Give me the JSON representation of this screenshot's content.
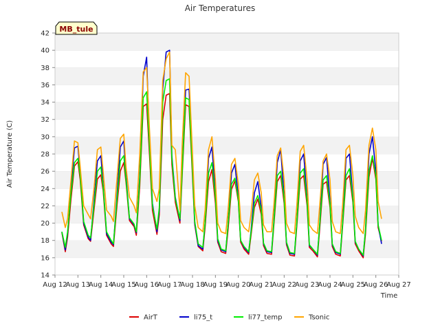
{
  "chart_data": {
    "type": "line",
    "title": "Air Temperatures",
    "xlabel": "Time",
    "ylabel": "Air Temperature (C)",
    "badge": "MB_tule",
    "ylim": [
      14,
      42
    ],
    "yticks": [
      14,
      16,
      18,
      20,
      22,
      24,
      26,
      28,
      30,
      32,
      34,
      36,
      38,
      40,
      42
    ],
    "xlim": [
      12,
      27
    ],
    "xticks": [
      12,
      13,
      14,
      15,
      16,
      17,
      18,
      19,
      20,
      21,
      22,
      23,
      24,
      25,
      26,
      27
    ],
    "xtick_labels": [
      "Aug 12",
      "Aug 13",
      "Aug 14",
      "Aug 15",
      "Aug 16",
      "Aug 17",
      "Aug 18",
      "Aug 19",
      "Aug 20",
      "Aug 21",
      "Aug 22",
      "Aug 23",
      "Aug 24",
      "Aug 25",
      "Aug 26",
      "Aug 27"
    ],
    "grid": "horizontal bands",
    "legend_position": "bottom-center",
    "series": [
      {
        "name": "AirT",
        "color": "#dd0000",
        "x": [
          12.3,
          12.45,
          12.55,
          12.7,
          12.85,
          13.0,
          13.1,
          13.25,
          13.45,
          13.55,
          13.7,
          13.85,
          14.0,
          14.1,
          14.25,
          14.45,
          14.55,
          14.7,
          14.85,
          15.0,
          15.1,
          15.25,
          15.45,
          15.55,
          15.7,
          15.85,
          16.0,
          16.1,
          16.25,
          16.45,
          16.55,
          16.7,
          16.85,
          17.0,
          17.1,
          17.25,
          17.45,
          17.55,
          17.7,
          17.85,
          18.0,
          18.1,
          18.25,
          18.45,
          18.55,
          18.7,
          18.85,
          19.0,
          19.1,
          19.25,
          19.45,
          19.55,
          19.7,
          19.85,
          20.0,
          20.1,
          20.25,
          20.45,
          20.55,
          20.7,
          20.85,
          21.0,
          21.1,
          21.25,
          21.45,
          21.55,
          21.7,
          21.85,
          22.0,
          22.1,
          22.25,
          22.45,
          22.55,
          22.7,
          22.85,
          23.0,
          23.1,
          23.25,
          23.45,
          23.55,
          23.7,
          23.85,
          24.0,
          24.1,
          24.25,
          24.45,
          24.55,
          24.7,
          24.85,
          25.0,
          25.1,
          25.25,
          25.45,
          25.55,
          25.7,
          25.85,
          26.0,
          26.1,
          26.25
        ],
        "y": [
          18.9,
          16.7,
          18.4,
          22.8,
          26.6,
          27.1,
          25.0,
          19.8,
          18.2,
          17.9,
          21.5,
          25.1,
          25.6,
          23.8,
          18.6,
          17.6,
          17.3,
          21.9,
          26.0,
          27.0,
          24.7,
          20.3,
          19.6,
          18.6,
          24.3,
          33.5,
          33.8,
          29.0,
          21.5,
          18.7,
          21.0,
          32.0,
          34.8,
          35.0,
          26.8,
          22.4,
          20.0,
          25.5,
          33.7,
          33.5,
          25.4,
          19.8,
          17.3,
          16.8,
          19.5,
          24.8,
          26.2,
          22.3,
          17.8,
          16.7,
          16.5,
          19.2,
          23.9,
          24.9,
          22.5,
          17.8,
          17.0,
          16.4,
          18.5,
          21.8,
          22.8,
          21.0,
          17.4,
          16.5,
          16.4,
          19.7,
          24.8,
          25.5,
          22.3,
          17.5,
          16.3,
          16.2,
          19.6,
          25.1,
          25.5,
          22.0,
          17.2,
          16.8,
          16.1,
          19.3,
          24.5,
          24.8,
          21.8,
          17.3,
          16.4,
          16.2,
          19.6,
          25.0,
          25.5,
          22.4,
          17.6,
          16.8,
          16.0,
          18.8,
          25.3,
          27.5,
          25.1,
          19.5,
          17.9
        ]
      },
      {
        "name": "li75_t",
        "color": "#0000cc",
        "x": [
          12.3,
          12.45,
          12.55,
          12.7,
          12.85,
          13.0,
          13.1,
          13.25,
          13.45,
          13.55,
          13.7,
          13.85,
          14.0,
          14.1,
          14.25,
          14.45,
          14.55,
          14.7,
          14.85,
          15.0,
          15.1,
          15.25,
          15.45,
          15.55,
          15.7,
          15.85,
          16.0,
          16.1,
          16.25,
          16.45,
          16.55,
          16.7,
          16.85,
          17.0,
          17.1,
          17.25,
          17.45,
          17.55,
          17.7,
          17.85,
          18.0,
          18.1,
          18.25,
          18.45,
          18.55,
          18.7,
          18.85,
          19.0,
          19.1,
          19.25,
          19.45,
          19.55,
          19.7,
          19.85,
          20.0,
          20.1,
          20.25,
          20.45,
          20.55,
          20.7,
          20.85,
          21.0,
          21.1,
          21.25,
          21.45,
          21.55,
          21.7,
          21.85,
          22.0,
          22.1,
          22.25,
          22.45,
          22.55,
          22.7,
          22.85,
          23.0,
          23.1,
          23.25,
          23.45,
          23.55,
          23.7,
          23.85,
          24.0,
          24.1,
          24.25,
          24.45,
          24.55,
          24.7,
          24.85,
          25.0,
          25.1,
          25.25,
          25.45,
          25.55,
          25.7,
          25.85,
          26.0,
          26.1,
          26.25
        ],
        "y": [
          19.0,
          16.9,
          18.8,
          24.0,
          28.7,
          28.9,
          25.8,
          20.0,
          18.4,
          18.0,
          22.5,
          27.2,
          27.8,
          24.5,
          18.8,
          17.8,
          17.5,
          23.0,
          28.8,
          29.5,
          25.5,
          20.5,
          19.8,
          18.9,
          25.5,
          37.0,
          39.2,
          31.0,
          22.3,
          19.0,
          21.5,
          35.5,
          39.8,
          40.0,
          27.8,
          23.0,
          20.3,
          26.5,
          35.4,
          35.5,
          26.2,
          20.0,
          17.4,
          17.0,
          20.0,
          27.5,
          28.8,
          23.5,
          18.0,
          16.9,
          16.7,
          19.8,
          25.8,
          26.8,
          23.0,
          18.0,
          17.2,
          16.6,
          19.0,
          23.5,
          24.8,
          21.8,
          17.6,
          16.7,
          16.6,
          20.2,
          27.0,
          28.5,
          23.0,
          17.7,
          16.5,
          16.4,
          20.0,
          27.2,
          28.0,
          22.8,
          17.4,
          17.0,
          16.3,
          19.8,
          26.8,
          27.6,
          22.5,
          17.5,
          16.6,
          16.4,
          20.0,
          27.5,
          28.0,
          23.0,
          17.8,
          17.0,
          16.2,
          19.3,
          28.0,
          30.0,
          26.0,
          19.8,
          17.6
        ]
      },
      {
        "name": "li77_temp",
        "color": "#00ee00",
        "x": [
          12.3,
          12.45,
          12.55,
          12.7,
          12.85,
          13.0,
          13.1,
          13.25,
          13.45,
          13.55,
          13.7,
          13.85,
          14.0,
          14.1,
          14.25,
          14.45,
          14.55,
          14.7,
          14.85,
          15.0,
          15.1,
          15.25,
          15.45,
          15.55,
          15.7,
          15.85,
          16.0,
          16.1,
          16.25,
          16.45,
          16.55,
          16.7,
          16.85,
          17.0,
          17.1,
          17.25,
          17.45,
          17.55,
          17.7,
          17.85,
          18.0,
          18.1,
          18.25,
          18.45,
          18.55,
          18.7,
          18.85,
          19.0,
          19.1,
          19.25,
          19.45,
          19.55,
          19.7,
          19.85,
          20.0,
          20.1,
          20.25,
          20.45,
          20.55,
          20.7,
          20.85,
          21.0,
          21.1,
          21.25,
          21.45,
          21.55,
          21.7,
          21.85,
          22.0,
          22.1,
          22.25,
          22.45,
          22.55,
          22.7,
          22.85,
          23.0,
          23.1,
          23.25,
          23.45,
          23.55,
          23.7,
          23.85,
          24.0,
          24.1,
          24.25,
          24.45,
          24.55,
          24.7,
          24.85,
          25.0,
          25.1,
          25.25,
          25.45,
          25.55,
          25.7,
          25.85,
          26.0,
          26.1,
          26.25
        ],
        "y": [
          19.0,
          17.2,
          19.0,
          23.5,
          27.0,
          27.5,
          25.5,
          20.2,
          18.6,
          18.3,
          22.0,
          26.0,
          26.5,
          24.2,
          19.0,
          18.0,
          17.6,
          22.5,
          27.2,
          27.8,
          25.0,
          20.6,
          19.9,
          19.0,
          25.0,
          34.5,
          35.2,
          30.0,
          22.0,
          19.3,
          21.8,
          34.0,
          36.5,
          36.7,
          27.5,
          22.8,
          20.5,
          26.0,
          34.5,
          34.3,
          26.0,
          20.2,
          17.6,
          17.2,
          20.0,
          25.8,
          27.0,
          23.0,
          18.2,
          17.0,
          16.8,
          19.8,
          24.5,
          25.2,
          22.8,
          18.0,
          17.3,
          16.7,
          18.8,
          22.3,
          23.2,
          21.5,
          17.7,
          16.8,
          16.7,
          20.0,
          25.5,
          26.0,
          22.8,
          17.8,
          16.6,
          16.5,
          20.0,
          25.8,
          26.3,
          22.5,
          17.5,
          17.0,
          16.4,
          19.8,
          25.0,
          25.5,
          22.2,
          17.6,
          16.7,
          16.5,
          19.9,
          25.5,
          26.3,
          22.8,
          17.9,
          17.0,
          16.3,
          19.2,
          26.0,
          27.8,
          25.5,
          19.8,
          18.0
        ]
      },
      {
        "name": "Tsonic",
        "color": "#ffa500",
        "x": [
          12.3,
          12.45,
          12.55,
          12.7,
          12.85,
          13.0,
          13.1,
          13.25,
          13.45,
          13.55,
          13.7,
          13.85,
          14.0,
          14.1,
          14.25,
          14.45,
          14.55,
          14.7,
          14.85,
          15.0,
          15.1,
          15.25,
          15.45,
          15.55,
          15.7,
          15.85,
          16.0,
          16.1,
          16.25,
          16.45,
          16.55,
          16.7,
          16.85,
          17.0,
          17.1,
          17.25,
          17.45,
          17.55,
          17.7,
          17.85,
          18.0,
          18.1,
          18.25,
          18.45,
          18.55,
          18.7,
          18.85,
          19.0,
          19.1,
          19.25,
          19.45,
          19.55,
          19.7,
          19.85,
          20.0,
          20.1,
          20.25,
          20.45,
          20.55,
          20.7,
          20.85,
          21.0,
          21.1,
          21.25,
          21.45,
          21.55,
          21.7,
          21.85,
          22.0,
          22.1,
          22.25,
          22.45,
          22.55,
          22.7,
          22.85,
          23.0,
          23.1,
          23.25,
          23.45,
          23.55,
          23.7,
          23.85,
          24.0,
          24.1,
          24.25,
          24.45,
          24.55,
          24.7,
          24.85,
          25.0,
          25.1,
          25.25,
          25.45,
          25.55,
          25.7,
          25.85,
          26.0,
          26.1,
          26.25
        ],
        "y": [
          21.3,
          19.5,
          20.5,
          25.0,
          29.5,
          29.3,
          26.5,
          22.0,
          21.0,
          20.5,
          24.0,
          28.5,
          28.8,
          26.0,
          21.5,
          20.8,
          20.2,
          25.0,
          29.8,
          30.3,
          26.5,
          23.0,
          22.0,
          21.2,
          28.0,
          37.5,
          38.0,
          32.0,
          24.0,
          22.5,
          24.0,
          36.5,
          39.0,
          39.8,
          29.0,
          28.5,
          21.5,
          29.0,
          37.4,
          37.0,
          28.0,
          22.0,
          19.5,
          19.0,
          21.5,
          28.5,
          30.0,
          25.0,
          20.0,
          19.0,
          18.8,
          21.5,
          26.8,
          27.5,
          24.5,
          20.3,
          19.5,
          19.0,
          21.0,
          25.0,
          25.8,
          23.5,
          19.8,
          19.0,
          19.0,
          22.0,
          27.8,
          28.7,
          25.0,
          20.0,
          19.0,
          18.8,
          22.0,
          28.3,
          29.0,
          25.0,
          19.8,
          19.2,
          18.8,
          22.0,
          27.2,
          28.0,
          25.0,
          20.2,
          19.0,
          18.8,
          22.0,
          28.5,
          29.0,
          25.5,
          20.8,
          19.5,
          18.8,
          21.5,
          29.0,
          31.0,
          28.5,
          22.5,
          20.5
        ]
      }
    ]
  }
}
